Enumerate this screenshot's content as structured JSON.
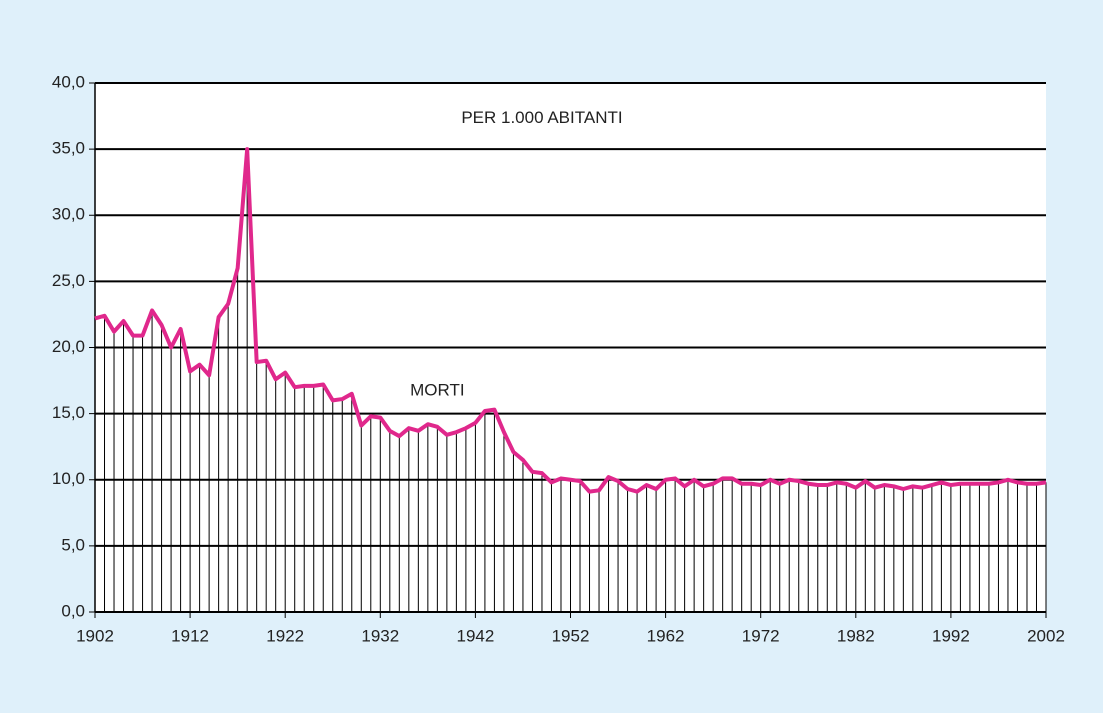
{
  "chart_data": {
    "type": "line",
    "annotations": [
      "PER 1.000 ABITANTI"
    ],
    "x": [
      1902,
      1903,
      1904,
      1905,
      1906,
      1907,
      1908,
      1909,
      1910,
      1911,
      1912,
      1913,
      1914,
      1915,
      1916,
      1917,
      1918,
      1919,
      1920,
      1921,
      1922,
      1923,
      1924,
      1925,
      1926,
      1927,
      1928,
      1929,
      1930,
      1931,
      1932,
      1933,
      1934,
      1935,
      1936,
      1937,
      1938,
      1939,
      1940,
      1941,
      1942,
      1943,
      1944,
      1945,
      1946,
      1947,
      1948,
      1949,
      1950,
      1951,
      1952,
      1953,
      1954,
      1955,
      1956,
      1957,
      1958,
      1959,
      1960,
      1961,
      1962,
      1963,
      1964,
      1965,
      1966,
      1967,
      1968,
      1969,
      1970,
      1971,
      1972,
      1973,
      1974,
      1975,
      1976,
      1977,
      1978,
      1979,
      1980,
      1981,
      1982,
      1983,
      1984,
      1985,
      1986,
      1987,
      1988,
      1989,
      1990,
      1991,
      1992,
      1993,
      1994,
      1995,
      1996,
      1997,
      1998,
      1999,
      2000,
      2001,
      2002
    ],
    "series": [
      {
        "name": "MORTI",
        "color": "#e0288c",
        "values": [
          22.2,
          22.4,
          21.2,
          22.0,
          20.9,
          20.9,
          22.8,
          21.7,
          20.0,
          21.4,
          18.2,
          18.7,
          17.9,
          22.3,
          23.3,
          26.0,
          35.0,
          18.9,
          19.0,
          17.6,
          18.1,
          17.0,
          17.1,
          17.1,
          17.2,
          16.0,
          16.1,
          16.5,
          14.1,
          14.8,
          14.7,
          13.7,
          13.3,
          13.9,
          13.7,
          14.2,
          14.0,
          13.4,
          13.6,
          13.9,
          14.3,
          15.2,
          15.3,
          13.6,
          12.1,
          11.5,
          10.6,
          10.5,
          9.8,
          10.1,
          10.0,
          9.9,
          9.1,
          9.2,
          10.2,
          9.9,
          9.3,
          9.1,
          9.6,
          9.3,
          10.0,
          10.1,
          9.5,
          10.0,
          9.5,
          9.7,
          10.1,
          10.1,
          9.7,
          9.7,
          9.6,
          10.0,
          9.7,
          10.0,
          9.9,
          9.7,
          9.6,
          9.6,
          9.8,
          9.7,
          9.4,
          9.9,
          9.4,
          9.6,
          9.5,
          9.3,
          9.5,
          9.4,
          9.6,
          9.8,
          9.6,
          9.7,
          9.7,
          9.7,
          9.7,
          9.8,
          10.0,
          9.8,
          9.7,
          9.7,
          9.8
        ]
      }
    ],
    "xlim": [
      1902,
      2002
    ],
    "xticks": [
      1902,
      1912,
      1922,
      1932,
      1942,
      1952,
      1962,
      1972,
      1982,
      1992,
      2002
    ],
    "ylim": [
      0,
      40
    ],
    "yticks": [
      {
        "value": 0,
        "label": "0,0"
      },
      {
        "value": 5,
        "label": "5,0"
      },
      {
        "value": 10,
        "label": "10,0"
      },
      {
        "value": 15,
        "label": "15,0"
      },
      {
        "value": 20,
        "label": "20,0"
      },
      {
        "value": 25,
        "label": "25,0"
      },
      {
        "value": 30,
        "label": "30,0"
      },
      {
        "value": 35,
        "label": "35,0"
      },
      {
        "value": 40,
        "label": "40,0"
      }
    ],
    "grid": true,
    "drop_lines": true
  }
}
